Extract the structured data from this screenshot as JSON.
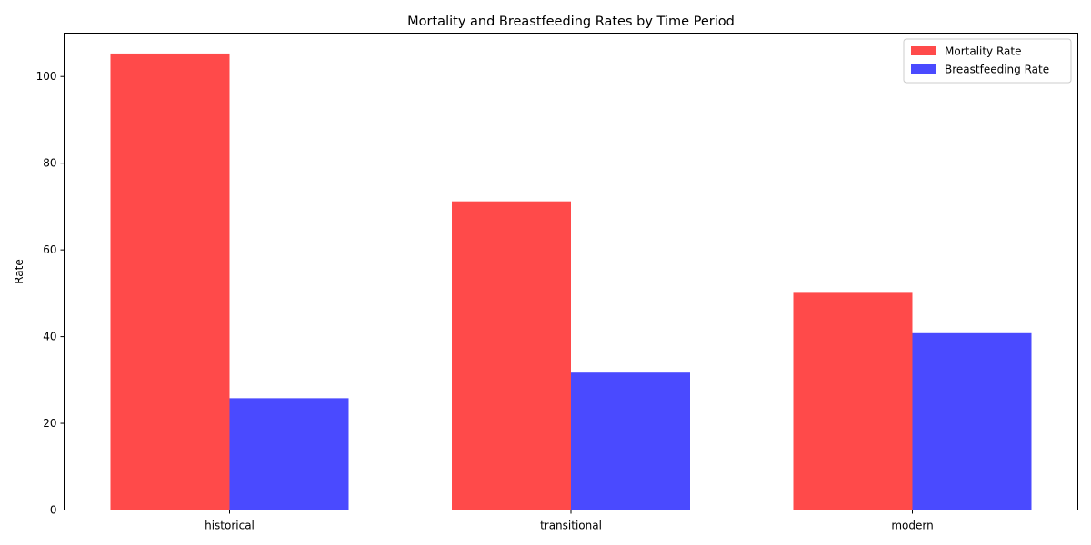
{
  "chart_data": {
    "type": "bar",
    "title": "Mortality and Breastfeeding Rates by Time Period",
    "xlabel": "",
    "ylabel": "Rate",
    "categories": [
      "historical",
      "transitional",
      "modern"
    ],
    "series": [
      {
        "name": "Mortality Rate",
        "values": [
          105.3,
          71.2,
          50.1
        ],
        "color": "#ff4a4a"
      },
      {
        "name": "Breastfeeding Rate",
        "values": [
          25.8,
          31.7,
          40.8
        ],
        "color": "#4a4aff"
      }
    ],
    "ylim": [
      0,
      110
    ],
    "yticks": [
      0,
      20,
      40,
      60,
      80,
      100
    ],
    "grid": false,
    "legend": "top-right"
  }
}
